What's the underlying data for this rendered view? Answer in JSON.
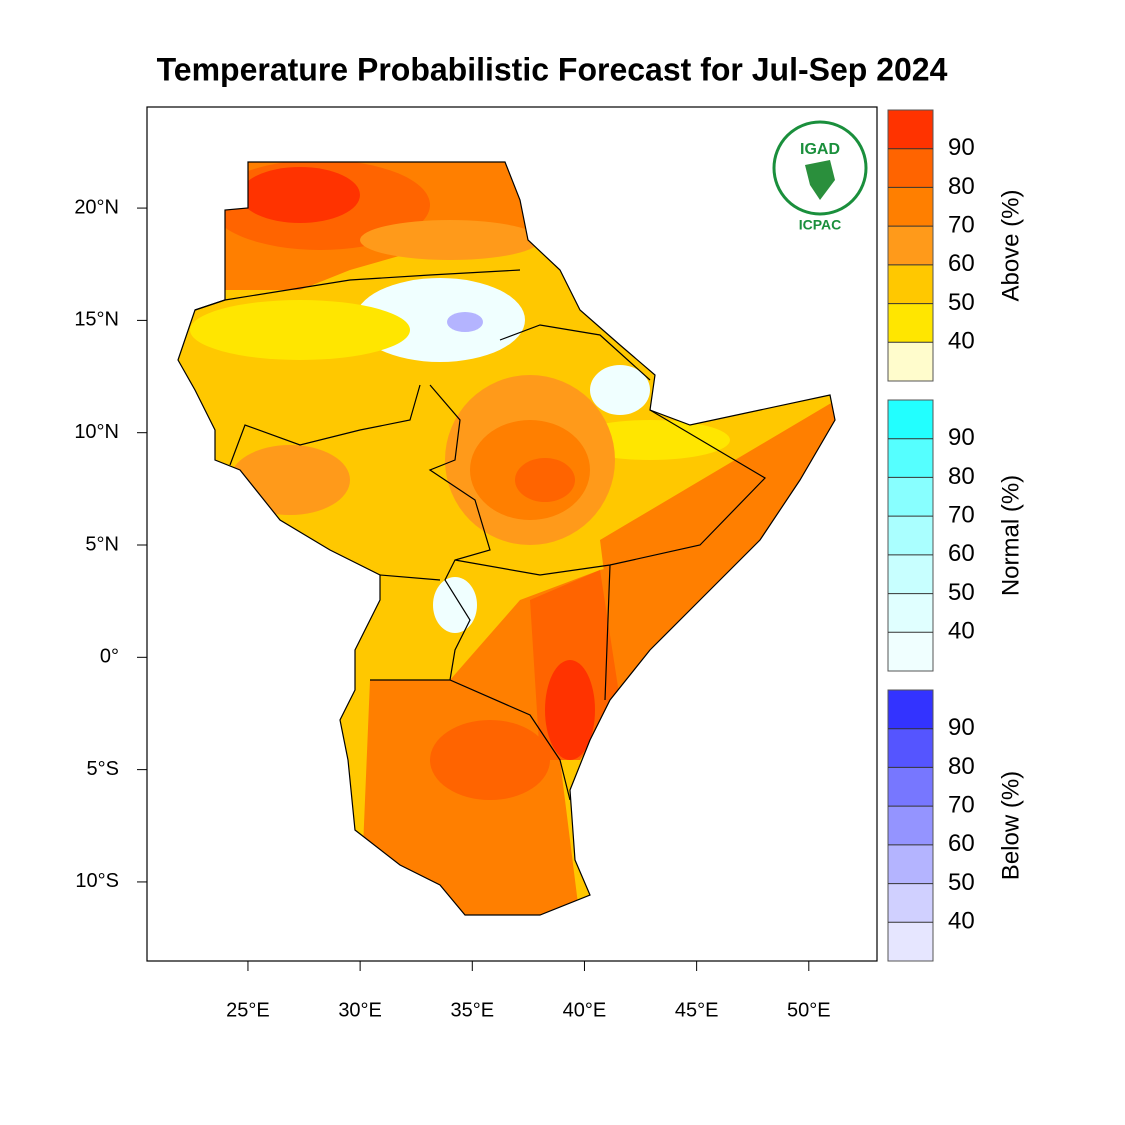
{
  "title": "Temperature Probabilistic Forecast for Jul-Sep 2024",
  "map": {
    "xlim": [
      20.5,
      53.04
    ],
    "ylim": [
      -13.52,
      24.5
    ],
    "xticks": [
      {
        "value": 25,
        "label": "25°E"
      },
      {
        "value": 30,
        "label": "30°E"
      },
      {
        "value": 35,
        "label": "35°E"
      },
      {
        "value": 40,
        "label": "40°E"
      },
      {
        "value": 45,
        "label": "45°E"
      },
      {
        "value": 50,
        "label": "50°E"
      }
    ],
    "yticks": [
      {
        "value": 20,
        "label": "20°N"
      },
      {
        "value": 15,
        "label": "15°N"
      },
      {
        "value": 10,
        "label": "10°N"
      },
      {
        "value": 5,
        "label": "5°N"
      },
      {
        "value": 0,
        "label": "0°"
      },
      {
        "value": -5,
        "label": "5°S"
      },
      {
        "value": -10,
        "label": "10°S"
      }
    ]
  },
  "legend": [
    {
      "name": "Above (%)",
      "levels": [
        40,
        50,
        60,
        70,
        80,
        90
      ],
      "colors": [
        "#fffccc",
        "#ffe600",
        "#ffc800",
        "#ff9a1a",
        "#ff7f00",
        "#ff6400",
        "#ff3300"
      ]
    },
    {
      "name": "Normal (%)",
      "levels": [
        40,
        50,
        60,
        70,
        80,
        90
      ],
      "colors": [
        "#f0ffff",
        "#e0ffff",
        "#c8ffff",
        "#aaffff",
        "#88ffff",
        "#55ffff",
        "#22ffff"
      ]
    },
    {
      "name": "Below (%)",
      "levels": [
        40,
        50,
        60,
        70,
        80,
        90
      ],
      "colors": [
        "#e6e6ff",
        "#d0d0ff",
        "#b4b4ff",
        "#9494ff",
        "#7777ff",
        "#5555ff",
        "#3333ff"
      ]
    }
  ],
  "logo": {
    "top": "IGAD",
    "bottom": "ICPAC"
  }
}
